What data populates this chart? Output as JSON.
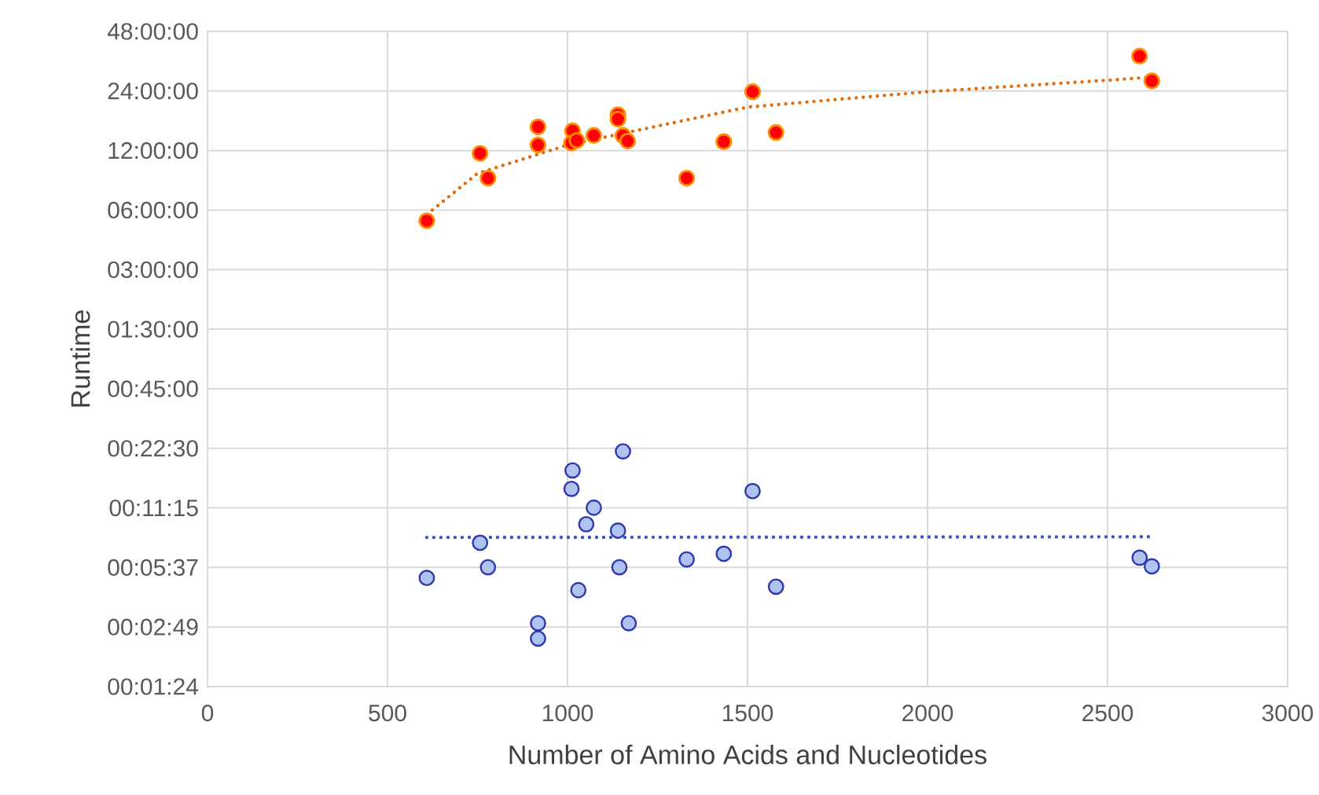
{
  "chart_data": {
    "type": "scatter",
    "xlabel": "Number of Amino Acids and Nucleotides",
    "ylabel": "Runtime",
    "xlim": [
      0,
      3000
    ],
    "xticks": [
      0,
      500,
      1000,
      1500,
      2000,
      2500,
      3000
    ],
    "ylim": [
      0.0234375,
      48
    ],
    "log": "y",
    "yticks": [
      {
        "value": 0.0234375,
        "label": "00:01:24"
      },
      {
        "value": 0.046875,
        "label": "00:02:49"
      },
      {
        "value": 0.09375,
        "label": "00:05:37"
      },
      {
        "value": 0.1875,
        "label": "00:11:15"
      },
      {
        "value": 0.375,
        "label": "00:22:30"
      },
      {
        "value": 0.75,
        "label": "00:45:00"
      },
      {
        "value": 1.5,
        "label": "01:30:00"
      },
      {
        "value": 3,
        "label": "03:00:00"
      },
      {
        "value": 6,
        "label": "06:00:00"
      },
      {
        "value": 12,
        "label": "12:00:00"
      },
      {
        "value": 24,
        "label": "24:00:00"
      },
      {
        "value": 48,
        "label": "48:00:00"
      }
    ],
    "grid": true,
    "marker": "circle",
    "series": [
      {
        "color": "#ff0000",
        "x": [
          609,
          757,
          779,
          918,
          918,
          1014,
          1011,
          1026,
          1073,
          1140,
          1140,
          1154,
          1167,
          1331,
          1434,
          1514,
          1579,
          2589,
          2623
        ],
        "values": [
          5.3,
          11.6,
          8.7,
          15.8,
          12.8,
          15.1,
          13.1,
          13.5,
          14.3,
          18.2,
          17.3,
          14.3,
          13.4,
          8.7,
          13.3,
          23.8,
          14.8,
          36,
          27
        ]
      },
      {
        "type": "line",
        "color": "#e46c0a",
        "marker": "none",
        "line_style": "dotted",
        "x": [
          609,
          750,
          1000,
          1500,
          2000,
          2500,
          2623
        ],
        "values": [
          5.7,
          9.2,
          12.8,
          19.9,
          23.8,
          27.2,
          28.2
        ]
      },
      {
        "color": "#aec3ef",
        "x": [
          609,
          757,
          779,
          918,
          918,
          1014,
          1011,
          1030,
          1052,
          1073,
          1140,
          1144,
          1154,
          1170,
          1331,
          1434,
          1514,
          1579,
          2589,
          2623
        ],
        "values": [
          0.083,
          0.125,
          0.094,
          0.049,
          0.041,
          0.29,
          0.234,
          0.072,
          0.155,
          0.188,
          0.144,
          0.094,
          0.362,
          0.049,
          0.103,
          0.11,
          0.228,
          0.075,
          0.105,
          0.095
        ]
      },
      {
        "type": "line",
        "color": "#2f5cc4",
        "marker": "none",
        "line_style": "dotted",
        "x": [
          609,
          2623
        ],
        "values": [
          0.133,
          0.134
        ]
      }
    ]
  }
}
